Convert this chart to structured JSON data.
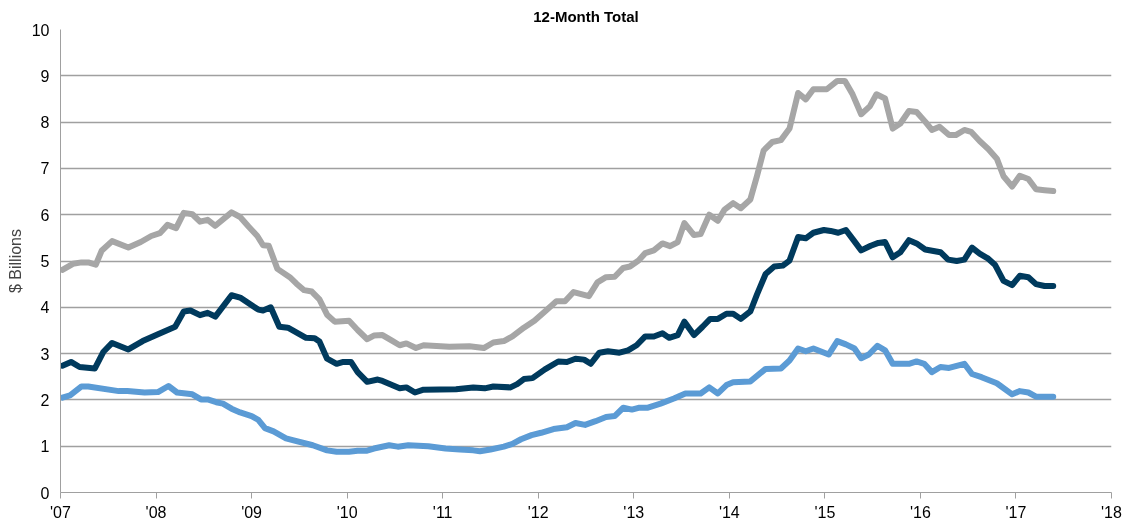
{
  "chart_data": {
    "type": "line",
    "title": "12-Month Total",
    "ylabel": "$ Billions",
    "xlim": [
      2007,
      2018
    ],
    "ylim": [
      0,
      10
    ],
    "xticks": [
      {
        "value": 2007,
        "label": "'07"
      },
      {
        "value": 2008,
        "label": "'08"
      },
      {
        "value": 2009,
        "label": "'09"
      },
      {
        "value": 2010,
        "label": "'10"
      },
      {
        "value": 2011,
        "label": "'11"
      },
      {
        "value": 2012,
        "label": "'12"
      },
      {
        "value": 2013,
        "label": "'13"
      },
      {
        "value": 2014,
        "label": "'14"
      },
      {
        "value": 2015,
        "label": "'15"
      },
      {
        "value": 2016,
        "label": "'16"
      },
      {
        "value": 2017,
        "label": "'17"
      },
      {
        "value": 2018,
        "label": "'18"
      }
    ],
    "yticks": [
      0,
      1,
      2,
      3,
      4,
      5,
      6,
      7,
      8,
      9,
      10
    ],
    "grid": "y",
    "marker": "none",
    "line_style": "solid",
    "series": [
      {
        "color": "#a6a6a6",
        "x": [
          2007.02,
          2007.13,
          2007.22,
          2007.29,
          2007.37,
          2007.43,
          2007.54,
          2007.71,
          2007.84,
          2007.95,
          2008.04,
          2008.12,
          2008.21,
          2008.29,
          2008.38,
          2008.46,
          2008.54,
          2008.62,
          2008.79,
          2008.88,
          2008.97,
          2009.06,
          2009.12,
          2009.18,
          2009.27,
          2009.4,
          2009.47,
          2009.55,
          2009.63,
          2009.71,
          2009.79,
          2009.87,
          2010.02,
          2010.11,
          2010.21,
          2010.28,
          2010.37,
          2010.46,
          2010.55,
          2010.62,
          2010.72,
          2010.8,
          2011.07,
          2011.28,
          2011.43,
          2011.53,
          2011.64,
          2011.73,
          2011.85,
          2011.96,
          2012.07,
          2012.19,
          2012.28,
          2012.37,
          2012.53,
          2012.62,
          2012.71,
          2012.8,
          2012.89,
          2012.96,
          2013.05,
          2013.12,
          2013.21,
          2013.3,
          2013.38,
          2013.46,
          2013.53,
          2013.63,
          2013.7,
          2013.79,
          2013.88,
          2013.95,
          2014.04,
          2014.12,
          2014.22,
          2014.29,
          2014.36,
          2014.45,
          2014.54,
          2014.63,
          2014.72,
          2014.8,
          2014.88,
          2015.02,
          2015.13,
          2015.21,
          2015.29,
          2015.38,
          2015.47,
          2015.54,
          2015.63,
          2015.71,
          2015.79,
          2015.88,
          2015.96,
          2016.05,
          2016.12,
          2016.2,
          2016.3,
          2016.37,
          2016.46,
          2016.53,
          2016.62,
          2016.71,
          2016.8,
          2016.87,
          2016.96,
          2017.04,
          2017.13,
          2017.21,
          2017.3,
          2017.39
        ],
        "values": [
          4.81,
          4.94,
          4.97,
          4.97,
          4.92,
          5.22,
          5.43,
          5.29,
          5.41,
          5.54,
          5.6,
          5.78,
          5.71,
          6.04,
          6.01,
          5.85,
          5.89,
          5.76,
          6.05,
          5.95,
          5.74,
          5.54,
          5.34,
          5.33,
          4.83,
          4.65,
          4.51,
          4.37,
          4.34,
          4.17,
          3.84,
          3.69,
          3.71,
          3.51,
          3.31,
          3.39,
          3.4,
          3.29,
          3.18,
          3.22,
          3.12,
          3.18,
          3.15,
          3.16,
          3.12,
          3.24,
          3.27,
          3.37,
          3.56,
          3.71,
          3.91,
          4.13,
          4.13,
          4.33,
          4.24,
          4.54,
          4.65,
          4.66,
          4.85,
          4.88,
          5.01,
          5.17,
          5.23,
          5.38,
          5.32,
          5.41,
          5.82,
          5.56,
          5.58,
          6.0,
          5.87,
          6.11,
          6.25,
          6.14,
          6.33,
          6.84,
          7.39,
          7.57,
          7.61,
          7.86,
          8.63,
          8.49,
          8.71,
          8.71,
          8.89,
          8.89,
          8.6,
          8.17,
          8.34,
          8.6,
          8.51,
          7.86,
          7.97,
          8.24,
          8.22,
          8.01,
          7.83,
          7.9,
          7.72,
          7.72,
          7.83,
          7.79,
          7.59,
          7.42,
          7.21,
          6.83,
          6.61,
          6.84,
          6.77,
          6.55,
          6.53,
          6.51
        ]
      },
      {
        "color": "#003a5d",
        "x": [
          2007.02,
          2007.11,
          2007.2,
          2007.36,
          2007.45,
          2007.54,
          2007.71,
          2007.86,
          2008.02,
          2008.2,
          2008.29,
          2008.36,
          2008.46,
          2008.54,
          2008.62,
          2008.79,
          2008.88,
          2009.07,
          2009.12,
          2009.2,
          2009.29,
          2009.38,
          2009.57,
          2009.66,
          2009.71,
          2009.79,
          2009.89,
          2009.96,
          2010.04,
          2010.11,
          2010.21,
          2010.32,
          2010.37,
          2010.55,
          2010.62,
          2010.71,
          2010.8,
          2011.14,
          2011.32,
          2011.44,
          2011.53,
          2011.71,
          2011.78,
          2011.85,
          2011.94,
          2012.07,
          2012.21,
          2012.3,
          2012.39,
          2012.48,
          2012.55,
          2012.64,
          2012.73,
          2012.85,
          2012.94,
          2013.03,
          2013.12,
          2013.21,
          2013.3,
          2013.37,
          2013.46,
          2013.53,
          2013.63,
          2013.72,
          2013.8,
          2013.88,
          2013.97,
          2014.04,
          2014.12,
          2014.22,
          2014.29,
          2014.38,
          2014.47,
          2014.56,
          2014.63,
          2014.72,
          2014.8,
          2014.88,
          2014.99,
          2015.06,
          2015.14,
          2015.22,
          2015.3,
          2015.38,
          2015.48,
          2015.56,
          2015.63,
          2015.71,
          2015.79,
          2015.88,
          2015.96,
          2016.05,
          2016.21,
          2016.29,
          2016.38,
          2016.46,
          2016.54,
          2016.62,
          2016.71,
          2016.78,
          2016.87,
          2016.96,
          2017.04,
          2017.13,
          2017.21,
          2017.3,
          2017.39
        ],
        "values": [
          2.74,
          2.82,
          2.71,
          2.68,
          3.04,
          3.23,
          3.09,
          3.27,
          3.42,
          3.58,
          3.91,
          3.93,
          3.83,
          3.88,
          3.8,
          4.26,
          4.21,
          3.95,
          3.93,
          4.0,
          3.58,
          3.56,
          3.34,
          3.33,
          3.26,
          2.89,
          2.78,
          2.82,
          2.82,
          2.6,
          2.39,
          2.44,
          2.41,
          2.25,
          2.27,
          2.16,
          2.22,
          2.23,
          2.27,
          2.25,
          2.29,
          2.27,
          2.34,
          2.45,
          2.47,
          2.66,
          2.83,
          2.82,
          2.89,
          2.87,
          2.78,
          3.02,
          3.05,
          3.02,
          3.07,
          3.18,
          3.37,
          3.37,
          3.44,
          3.34,
          3.4,
          3.69,
          3.4,
          3.58,
          3.75,
          3.75,
          3.86,
          3.86,
          3.75,
          3.91,
          4.28,
          4.72,
          4.88,
          4.9,
          5.01,
          5.52,
          5.49,
          5.61,
          5.67,
          5.65,
          5.61,
          5.67,
          5.45,
          5.23,
          5.33,
          5.39,
          5.41,
          5.08,
          5.19,
          5.45,
          5.38,
          5.25,
          5.19,
          5.03,
          5.0,
          5.03,
          5.29,
          5.16,
          5.05,
          4.92,
          4.57,
          4.48,
          4.68,
          4.65,
          4.5,
          4.46,
          4.46
        ]
      },
      {
        "color": "#5b9bd5",
        "x": [
          2007.02,
          2007.1,
          2007.22,
          2007.29,
          2007.61,
          2007.7,
          2007.88,
          2008.02,
          2008.13,
          2008.22,
          2008.38,
          2008.47,
          2008.54,
          2008.63,
          2008.7,
          2008.79,
          2008.88,
          2009.0,
          2009.07,
          2009.14,
          2009.23,
          2009.36,
          2009.43,
          2009.64,
          2009.79,
          2009.89,
          2010.02,
          2010.11,
          2010.2,
          2010.28,
          2010.44,
          2010.53,
          2010.64,
          2010.85,
          2011.03,
          2011.18,
          2011.32,
          2011.39,
          2011.5,
          2011.64,
          2011.73,
          2011.82,
          2011.93,
          2012.03,
          2012.16,
          2012.3,
          2012.39,
          2012.49,
          2012.6,
          2012.71,
          2012.8,
          2012.89,
          2012.98,
          2013.05,
          2013.14,
          2013.28,
          2013.42,
          2013.54,
          2013.7,
          2013.79,
          2013.88,
          2013.97,
          2014.04,
          2014.22,
          2014.38,
          2014.54,
          2014.63,
          2014.72,
          2014.8,
          2014.88,
          2015.04,
          2015.13,
          2015.22,
          2015.31,
          2015.38,
          2015.46,
          2015.55,
          2015.63,
          2015.71,
          2015.88,
          2015.96,
          2016.04,
          2016.12,
          2016.21,
          2016.3,
          2016.46,
          2016.54,
          2016.64,
          2016.8,
          2016.96,
          2017.04,
          2017.13,
          2017.21,
          2017.39
        ],
        "values": [
          2.05,
          2.1,
          2.29,
          2.29,
          2.19,
          2.19,
          2.16,
          2.17,
          2.3,
          2.16,
          2.12,
          2.01,
          2.01,
          1.95,
          1.92,
          1.81,
          1.73,
          1.65,
          1.57,
          1.39,
          1.32,
          1.17,
          1.13,
          1.02,
          0.91,
          0.88,
          0.88,
          0.9,
          0.9,
          0.95,
          1.02,
          0.99,
          1.02,
          1.0,
          0.95,
          0.93,
          0.91,
          0.89,
          0.93,
          0.99,
          1.05,
          1.15,
          1.24,
          1.29,
          1.37,
          1.41,
          1.5,
          1.46,
          1.54,
          1.63,
          1.65,
          1.83,
          1.79,
          1.83,
          1.83,
          1.92,
          2.03,
          2.14,
          2.14,
          2.27,
          2.14,
          2.32,
          2.38,
          2.4,
          2.67,
          2.68,
          2.85,
          3.11,
          3.05,
          3.11,
          2.98,
          3.27,
          3.2,
          3.11,
          2.9,
          2.98,
          3.17,
          3.07,
          2.78,
          2.78,
          2.83,
          2.78,
          2.6,
          2.71,
          2.69,
          2.78,
          2.56,
          2.49,
          2.36,
          2.12,
          2.19,
          2.16,
          2.07,
          2.07
        ]
      }
    ]
  }
}
